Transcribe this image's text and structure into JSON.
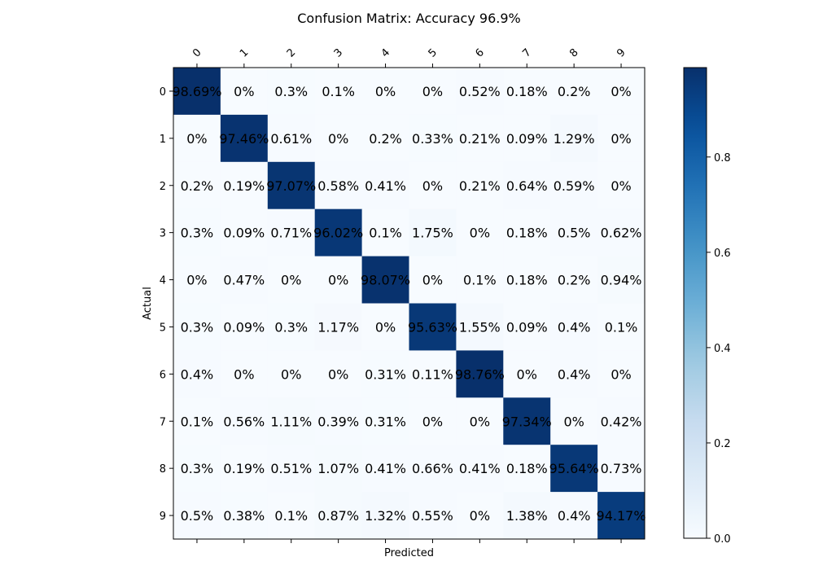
{
  "chart_data": {
    "type": "heatmap",
    "title": "Confusion Matrix: Accuracy 96.9%",
    "xlabel": "Predicted",
    "ylabel": "Actual",
    "x_categories": [
      "0",
      "1",
      "2",
      "3",
      "4",
      "5",
      "6",
      "7",
      "8",
      "9"
    ],
    "y_categories": [
      "0",
      "1",
      "2",
      "3",
      "4",
      "5",
      "6",
      "7",
      "8",
      "9"
    ],
    "x_ticks_position": "top",
    "x_tick_rotation_deg": -45,
    "values": [
      [
        98.69,
        0.0,
        0.3,
        0.1,
        0.0,
        0.0,
        0.52,
        0.18,
        0.2,
        0.0
      ],
      [
        0.0,
        97.46,
        0.61,
        0.0,
        0.2,
        0.33,
        0.21,
        0.09,
        1.29,
        0.0
      ],
      [
        0.2,
        0.19,
        97.07,
        0.58,
        0.41,
        0.0,
        0.21,
        0.64,
        0.59,
        0.0
      ],
      [
        0.3,
        0.09,
        0.71,
        96.02,
        0.1,
        1.75,
        0.0,
        0.18,
        0.5,
        0.62
      ],
      [
        0.0,
        0.47,
        0.0,
        0.0,
        98.07,
        0.0,
        0.1,
        0.18,
        0.2,
        0.94
      ],
      [
        0.3,
        0.09,
        0.3,
        1.17,
        0.0,
        95.63,
        1.55,
        0.09,
        0.4,
        0.1
      ],
      [
        0.4,
        0.0,
        0.0,
        0.0,
        0.31,
        0.11,
        98.76,
        0.0,
        0.4,
        0.0
      ],
      [
        0.1,
        0.56,
        1.11,
        0.39,
        0.31,
        0.0,
        0.0,
        97.34,
        0.0,
        0.42
      ],
      [
        0.3,
        0.19,
        0.51,
        1.07,
        0.41,
        0.66,
        0.41,
        0.18,
        95.64,
        0.73
      ],
      [
        0.5,
        0.38,
        0.1,
        0.87,
        1.32,
        0.55,
        0.0,
        1.38,
        0.4,
        94.17
      ]
    ],
    "value_suffix": "%",
    "colormap": "Blues",
    "colorbar": {
      "range": [
        0.0,
        0.9876
      ],
      "ticks": [
        0.0,
        0.2,
        0.4,
        0.6,
        0.8
      ],
      "tick_labels": [
        "0.0",
        "0.2",
        "0.4",
        "0.6",
        "0.8"
      ],
      "placement": "right"
    },
    "grid": false
  }
}
